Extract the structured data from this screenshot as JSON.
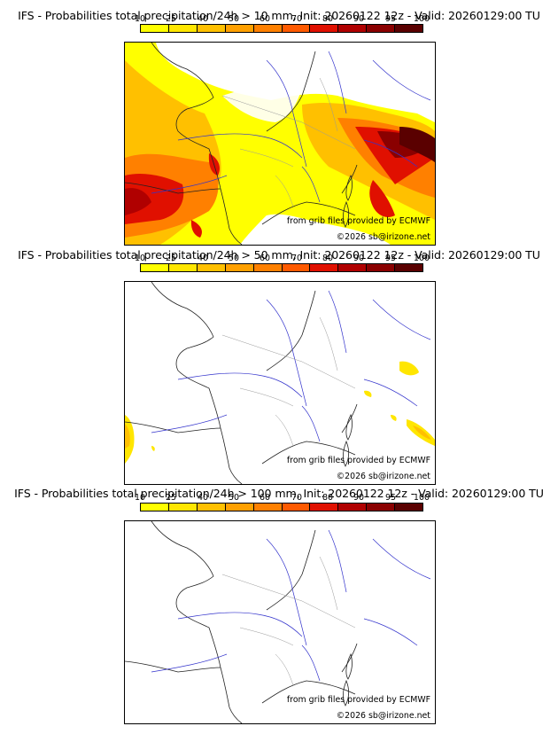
{
  "colorbar": {
    "ticks": [
      "10",
      "25",
      "40",
      "50",
      "60",
      "70",
      "80",
      "90",
      "95",
      "100"
    ],
    "colors": [
      "#ffff00",
      "#ffe600",
      "#ffc000",
      "#ffa000",
      "#ff8000",
      "#ff5a00",
      "#e01000",
      "#b00000",
      "#8a0000",
      "#5a0000"
    ]
  },
  "panels": [
    {
      "title": "IFS - Probabilities total precipitation/24h > 10 mm, Init: 20260122 12z - Valid: 20260129:00 TU"
    },
    {
      "title": "IFS - Probabilities total precipitation/24h > 50 mm, Init: 20260122 12z - Valid: 20260129:00 TU"
    },
    {
      "title": "IFS - Probabilities total precipitation/24h > 100 mm, Init: 20260122 12z - Valid: 20260129:00 TU"
    }
  ],
  "credits": {
    "source": "from grib files provided by ECMWF",
    "copyright": "©2026 sb@irizone.net"
  }
}
